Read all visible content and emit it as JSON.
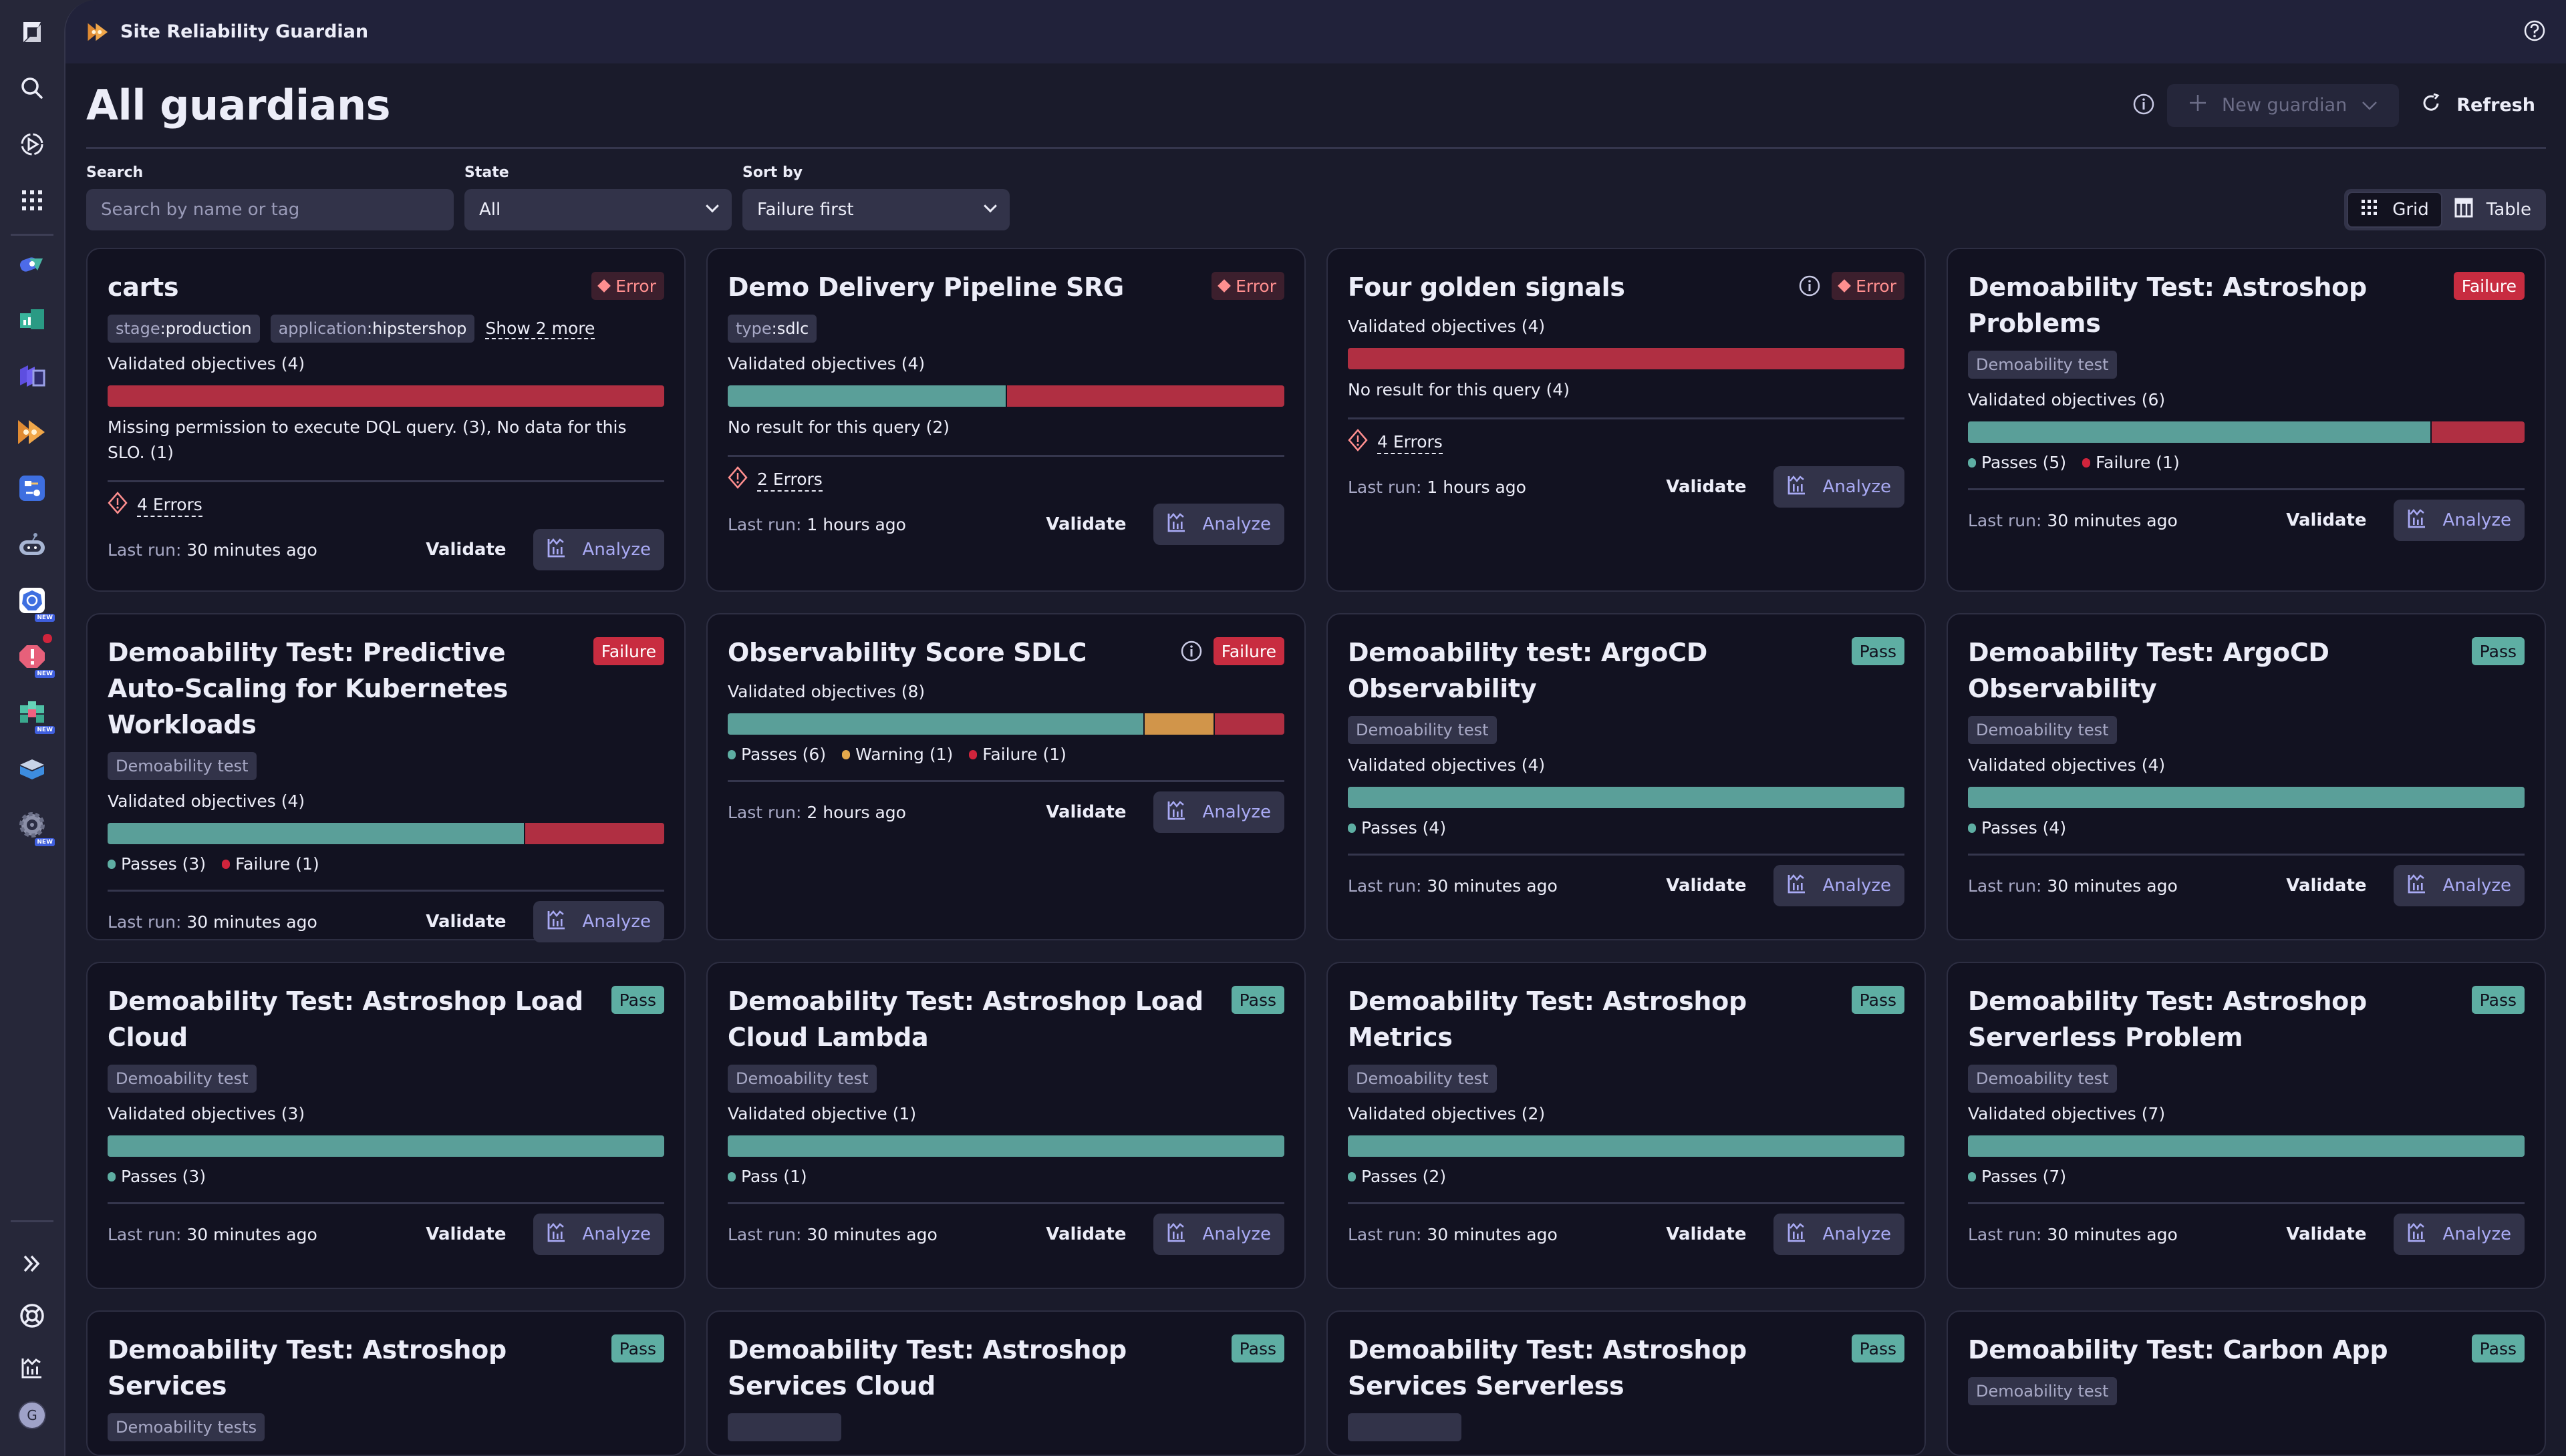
{
  "app": {
    "title": "Site Reliability Guardian",
    "user_initial": "G"
  },
  "sidebar": {
    "top": [
      {
        "name": "dynatrace-logo-icon"
      },
      {
        "name": "search-icon"
      },
      {
        "name": "play-icon"
      },
      {
        "name": "apps-grid-icon"
      }
    ],
    "apps": [
      {
        "name": "app-icon-1",
        "new": false
      },
      {
        "name": "app-icon-2",
        "new": false
      },
      {
        "name": "app-icon-3",
        "new": false
      },
      {
        "name": "srg-app-icon",
        "new": false,
        "active": true
      },
      {
        "name": "workflow-app-icon",
        "new": false,
        "dot": true
      },
      {
        "name": "robot-app-icon",
        "new": false
      },
      {
        "name": "kubernetes-app-icon",
        "new": true
      },
      {
        "name": "problems-app-icon",
        "new": true,
        "alert": true
      },
      {
        "name": "cubes-app-icon",
        "new": true
      },
      {
        "name": "layers-app-icon",
        "new": false
      },
      {
        "name": "gear-app-icon",
        "new": true
      }
    ],
    "new_label": "NEW"
  },
  "header": {
    "page_title": "All guardians",
    "new_guardian_label": "New guardian",
    "refresh_label": "Refresh"
  },
  "filters": {
    "search_label": "Search",
    "search_placeholder": "Search by name or tag",
    "state_label": "State",
    "state_value": "All",
    "sort_label": "Sort by",
    "sort_value": "Failure first",
    "view_grid": "Grid",
    "view_table": "Table",
    "active_view": "Grid"
  },
  "colors": {
    "pass": "#5a9f99",
    "failure": "#b02f42",
    "warning": "#d1954a",
    "pass_dot": "#5eaea3",
    "failure_dot": "#d0243c",
    "warning_dot": "#e5a94c",
    "accent": "#a9aaf4"
  },
  "labels": {
    "validate": "Validate",
    "analyze": "Analyze",
    "last_run_prefix": "Last run:"
  },
  "cards": [
    {
      "title": "carts",
      "status": "Error",
      "info": false,
      "tags": [
        {
          "k": "stage",
          "v": "production"
        },
        {
          "k": "application",
          "v": "hipstershop"
        }
      ],
      "show_more": "Show 2 more",
      "objectives": "Validated objectives (4)",
      "segments": [
        {
          "type": "failure",
          "count": 4
        }
      ],
      "message": "Missing permission to execute DQL query. (3), No data for this SLO. (1)",
      "legend": [],
      "errors": "4 Errors",
      "last_run": "30 minutes ago"
    },
    {
      "title": "Demo Delivery Pipeline SRG",
      "status": "Error",
      "info": false,
      "tags": [
        {
          "k": "type",
          "v": "sdlc"
        }
      ],
      "objectives": "Validated objectives (4)",
      "segments": [
        {
          "type": "pass",
          "count": 2
        },
        {
          "type": "failure",
          "count": 2
        }
      ],
      "message": "No result for this query (2)",
      "legend": [],
      "errors": "2 Errors",
      "last_run": "1 hours ago"
    },
    {
      "title": "Four golden signals",
      "status": "Error",
      "info": true,
      "tags": [],
      "objectives": "Validated objectives (4)",
      "segments": [
        {
          "type": "failure",
          "count": 4
        }
      ],
      "message": "No result for this query (4)",
      "legend": [],
      "errors": "4 Errors",
      "last_run": "1 hours ago"
    },
    {
      "title": "Demoability Test: Astroshop Problems",
      "status": "Failure",
      "info": false,
      "tags": [
        {
          "v": "Demoability test"
        }
      ],
      "objectives": "Validated objectives (6)",
      "segments": [
        {
          "type": "pass",
          "count": 5
        },
        {
          "type": "failure",
          "count": 1
        }
      ],
      "legend": [
        {
          "type": "pass",
          "label": "Passes (5)"
        },
        {
          "type": "failure",
          "label": "Failure (1)"
        }
      ],
      "last_run": "30 minutes ago"
    },
    {
      "title": "Demoability Test: Predictive Auto-Scaling for Kubernetes Workloads",
      "status": "Failure",
      "info": false,
      "tags": [
        {
          "v": "Demoability test"
        }
      ],
      "objectives": "Validated objectives (4)",
      "segments": [
        {
          "type": "pass",
          "count": 3
        },
        {
          "type": "failure",
          "count": 1
        }
      ],
      "legend": [
        {
          "type": "pass",
          "label": "Passes (3)"
        },
        {
          "type": "failure",
          "label": "Failure (1)"
        }
      ],
      "last_run": "30 minutes ago"
    },
    {
      "title": "Observability Score SDLC",
      "status": "Failure",
      "info": true,
      "tags": [],
      "objectives": "Validated objectives (8)",
      "segments": [
        {
          "type": "pass",
          "count": 6
        },
        {
          "type": "warning",
          "count": 1
        },
        {
          "type": "failure",
          "count": 1
        }
      ],
      "legend": [
        {
          "type": "pass",
          "label": "Passes (6)"
        },
        {
          "type": "warning",
          "label": "Warning (1)"
        },
        {
          "type": "failure",
          "label": "Failure (1)"
        }
      ],
      "last_run": "2 hours ago"
    },
    {
      "title": "Demoability test: ArgoCD Observability",
      "status": "Pass",
      "info": false,
      "tags": [
        {
          "v": "Demoability test"
        }
      ],
      "objectives": "Validated objectives (4)",
      "segments": [
        {
          "type": "pass",
          "count": 4
        }
      ],
      "legend": [
        {
          "type": "pass",
          "label": "Passes (4)"
        }
      ],
      "last_run": "30 minutes ago"
    },
    {
      "title": "Demoability Test: ArgoCD Observability",
      "status": "Pass",
      "info": false,
      "tags": [
        {
          "v": "Demoability test"
        }
      ],
      "objectives": "Validated objectives (4)",
      "segments": [
        {
          "type": "pass",
          "count": 4
        }
      ],
      "legend": [
        {
          "type": "pass",
          "label": "Passes (4)"
        }
      ],
      "last_run": "30 minutes ago"
    },
    {
      "title": "Demoability Test: Astroshop Load Cloud",
      "status": "Pass",
      "info": false,
      "tags": [
        {
          "v": "Demoability test"
        }
      ],
      "objectives": "Validated objectives (3)",
      "segments": [
        {
          "type": "pass",
          "count": 3
        }
      ],
      "legend": [
        {
          "type": "pass",
          "label": "Passes (3)"
        }
      ],
      "last_run": "30 minutes ago"
    },
    {
      "title": "Demoability Test: Astroshop Load Cloud Lambda",
      "status": "Pass",
      "info": false,
      "tags": [
        {
          "v": "Demoability test"
        }
      ],
      "objectives": "Validated objective (1)",
      "segments": [
        {
          "type": "pass",
          "count": 1
        }
      ],
      "legend": [
        {
          "type": "pass",
          "label": "Pass (1)"
        }
      ],
      "last_run": "30 minutes ago"
    },
    {
      "title": "Demoability Test: Astroshop Metrics",
      "status": "Pass",
      "info": false,
      "tags": [
        {
          "v": "Demoability test"
        }
      ],
      "objectives": "Validated objectives (2)",
      "segments": [
        {
          "type": "pass",
          "count": 2
        }
      ],
      "legend": [
        {
          "type": "pass",
          "label": "Passes (2)"
        }
      ],
      "last_run": "30 minutes ago"
    },
    {
      "title": "Demoability Test: Astroshop Serverless Problem",
      "status": "Pass",
      "info": false,
      "tags": [
        {
          "v": "Demoability test"
        }
      ],
      "objectives": "Validated objectives (7)",
      "segments": [
        {
          "type": "pass",
          "count": 7
        }
      ],
      "legend": [
        {
          "type": "pass",
          "label": "Passes (7)"
        }
      ],
      "last_run": "30 minutes ago"
    },
    {
      "title": "Demoability Test: Astroshop Services",
      "status": "Pass",
      "info": false,
      "tags": [
        {
          "v": "Demoability tests"
        }
      ]
    },
    {
      "title": "Demoability Test: Astroshop Services Cloud",
      "status": "Pass",
      "info": false,
      "tags": [
        {
          "v": ""
        }
      ]
    },
    {
      "title": "Demoability Test: Astroshop Services Serverless",
      "status": "Pass",
      "info": false,
      "tags": [
        {
          "v": ""
        }
      ]
    },
    {
      "title": "Demoability Test: Carbon App",
      "status": "Pass",
      "info": false,
      "tags": [
        {
          "v": "Demoability test"
        }
      ]
    }
  ]
}
